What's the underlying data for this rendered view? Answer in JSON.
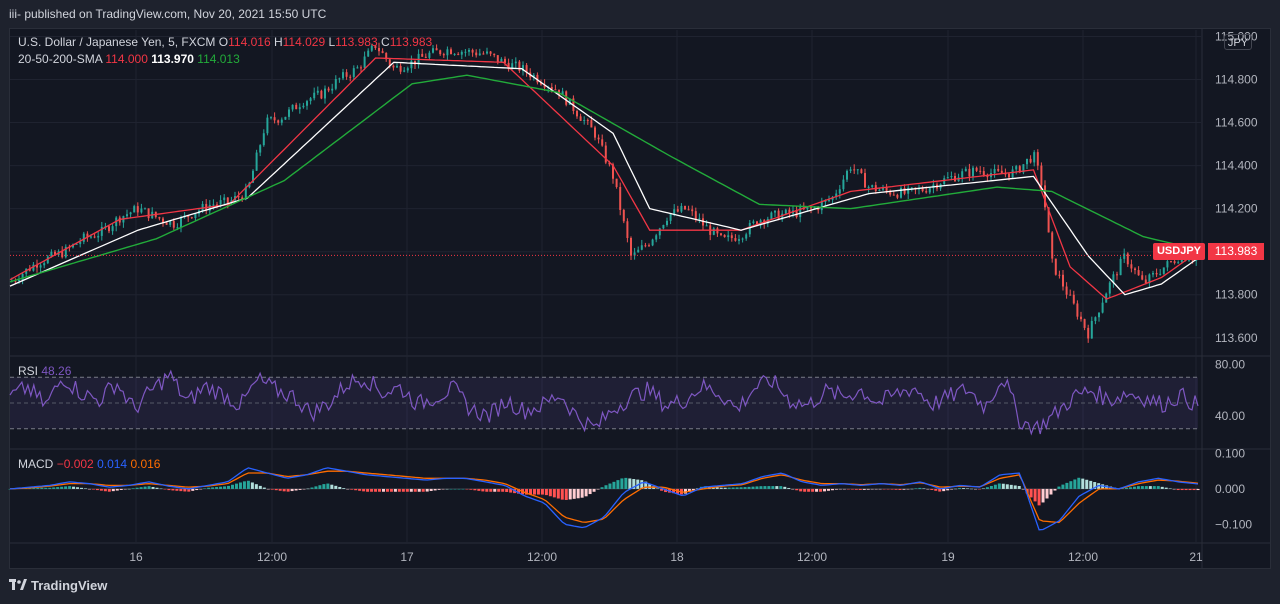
{
  "header": {
    "text": "iii- published on TradingView.com, Nov 20, 2021 15:50 UTC"
  },
  "main_legend": {
    "title": "U.S. Dollar / Japanese Yen, 5, FXCM",
    "o_label": "O",
    "o_value": "114.016",
    "h_label": "H",
    "h_value": "114.029",
    "l_label": "L",
    "l_value": "113.983",
    "c_label": "C",
    "c_value": "113.983"
  },
  "sma_legend": {
    "label": "20-50-200-SMA",
    "v1": "114.000",
    "v2": "113.970",
    "v3": "114.013"
  },
  "currency_button": "JPY",
  "symbol_tag": "USDJPY",
  "last_price": "113.983",
  "rsi_legend": {
    "label": "RSI",
    "value": "48.26"
  },
  "macd_legend": {
    "label": "MACD",
    "v1": "−0.002",
    "v2": "0.014",
    "v3": "0.016"
  },
  "footer": {
    "brand": "TradingView"
  },
  "colors": {
    "up": "#26a69a",
    "down": "#ef5350",
    "sma20": "#f23645",
    "sma50": "#ffffff",
    "sma200": "#22ab3a",
    "rsi": "#7e57c2",
    "macd": "#2962ff",
    "signal": "#ff6d00",
    "background": "#131722"
  },
  "chart_data": [
    {
      "type": "line",
      "name": "price",
      "title": "U.S. Dollar / Japanese Yen, 5, FXCM",
      "x_ticks": [
        "16",
        "12:00",
        "17",
        "12:00",
        "18",
        "12:00",
        "19",
        "12:00",
        "21"
      ],
      "y_ticks": [
        "115.000",
        "114.800",
        "114.600",
        "114.400",
        "114.200",
        "114.000",
        "113.800",
        "113.600"
      ],
      "ylim": [
        113.52,
        115.03
      ],
      "close_path": [
        [
          0,
          113.86
        ],
        [
          1.5,
          113.95
        ],
        [
          3,
          114.0
        ],
        [
          4,
          114.06
        ],
        [
          5,
          114.09
        ],
        [
          6,
          114.16
        ],
        [
          7,
          114.2
        ],
        [
          8,
          114.16
        ],
        [
          9,
          114.13
        ],
        [
          10,
          114.18
        ],
        [
          11,
          114.22
        ],
        [
          12,
          114.23
        ],
        [
          13,
          114.28
        ],
        [
          14,
          114.6
        ],
        [
          15,
          114.63
        ],
        [
          16,
          114.7
        ],
        [
          17,
          114.73
        ],
        [
          18,
          114.8
        ],
        [
          19,
          114.85
        ],
        [
          20,
          114.96
        ],
        [
          21,
          114.85
        ],
        [
          22,
          114.88
        ],
        [
          23,
          114.92
        ],
        [
          24,
          114.94
        ],
        [
          25,
          114.93
        ],
        [
          26,
          114.92
        ],
        [
          27,
          114.88
        ],
        [
          28,
          114.85
        ],
        [
          29,
          114.8
        ],
        [
          30,
          114.75
        ],
        [
          31,
          114.65
        ],
        [
          32,
          114.55
        ],
        [
          33,
          114.35
        ],
        [
          34,
          113.97
        ],
        [
          35,
          114.05
        ],
        [
          36,
          114.17
        ],
        [
          37,
          114.2
        ],
        [
          38,
          114.12
        ],
        [
          39,
          114.05
        ],
        [
          40,
          114.08
        ],
        [
          41,
          114.15
        ],
        [
          42,
          114.17
        ],
        [
          43,
          114.18
        ],
        [
          44,
          114.2
        ],
        [
          45,
          114.25
        ],
        [
          46,
          114.4
        ],
        [
          47,
          114.3
        ],
        [
          48,
          114.28
        ],
        [
          49,
          114.27
        ],
        [
          50,
          114.29
        ],
        [
          51,
          114.33
        ],
        [
          52,
          114.36
        ],
        [
          53,
          114.38
        ],
        [
          54,
          114.36
        ],
        [
          55,
          114.37
        ],
        [
          56,
          114.45
        ],
        [
          56.5,
          114.3
        ],
        [
          57,
          113.95
        ],
        [
          58,
          113.78
        ],
        [
          59,
          113.62
        ],
        [
          60,
          113.82
        ],
        [
          61,
          113.98
        ],
        [
          62,
          113.85
        ],
        [
          63,
          113.92
        ],
        [
          64,
          113.98
        ],
        [
          65,
          113.97
        ]
      ],
      "series": [
        {
          "name": "20-SMA",
          "values": [
            [
              0,
              113.87
            ],
            [
              6,
              114.15
            ],
            [
              12,
              114.22
            ],
            [
              20,
              114.9
            ],
            [
              27,
              114.88
            ],
            [
              33,
              114.4
            ],
            [
              35,
              114.1
            ],
            [
              40,
              114.1
            ],
            [
              46,
              114.28
            ],
            [
              56,
              114.38
            ],
            [
              58,
              113.93
            ],
            [
              60,
              113.78
            ],
            [
              63,
              113.88
            ],
            [
              65,
              114.0
            ]
          ]
        },
        {
          "name": "50-SMA",
          "values": [
            [
              0,
              113.84
            ],
            [
              7,
              114.1
            ],
            [
              13,
              114.25
            ],
            [
              21,
              114.88
            ],
            [
              28,
              114.85
            ],
            [
              33,
              114.55
            ],
            [
              35,
              114.2
            ],
            [
              40,
              114.1
            ],
            [
              47,
              114.27
            ],
            [
              56,
              114.35
            ],
            [
              59,
              113.98
            ],
            [
              61,
              113.8
            ],
            [
              63,
              113.85
            ],
            [
              65,
              113.97
            ]
          ]
        },
        {
          "name": "200-SMA",
          "values": [
            [
              0,
              113.86
            ],
            [
              8,
              114.06
            ],
            [
              15,
              114.33
            ],
            [
              22,
              114.78
            ],
            [
              25,
              114.82
            ],
            [
              30,
              114.74
            ],
            [
              36,
              114.45
            ],
            [
              41,
              114.22
            ],
            [
              46,
              114.2
            ],
            [
              54,
              114.3
            ],
            [
              57,
              114.28
            ],
            [
              62,
              114.07
            ],
            [
              65,
              114.01
            ]
          ]
        }
      ]
    },
    {
      "type": "line",
      "name": "RSI",
      "title": "RSI",
      "y_ticks": [
        "80.00",
        "40.00"
      ],
      "ylim": [
        15,
        85
      ],
      "bands": [
        70,
        30
      ],
      "midline": 50,
      "values": [
        55,
        62,
        48,
        70,
        58,
        52,
        66,
        45,
        60,
        72,
        50,
        63,
        57,
        48,
        68,
        60,
        55,
        42,
        50,
        65,
        70,
        58,
        62,
        49,
        55,
        61,
        45,
        40,
        52,
        44,
        48,
        57,
        39,
        30,
        45,
        55,
        60,
        48,
        52,
        63,
        58,
        45,
        62,
        67,
        52,
        48,
        59,
        55,
        60,
        50,
        57,
        62,
        49,
        55,
        61,
        47,
        71,
        35,
        31,
        42,
        55,
        60,
        52,
        58,
        54,
        49,
        56,
        48
      ]
    },
    {
      "type": "line",
      "name": "MACD",
      "title": "MACD",
      "y_ticks": [
        "0.100",
        "0.000",
        "−0.100"
      ],
      "ylim": [
        -0.15,
        0.11
      ],
      "series": [
        {
          "name": "MACD",
          "values": [
            0,
            0.005,
            0.01,
            0.02,
            0.015,
            0.005,
            0.01,
            0.02,
            0.008,
            0,
            0.01,
            0.02,
            0.06,
            0.045,
            0.03,
            0.04,
            0.06,
            0.05,
            0.04,
            0.035,
            0.03,
            0.025,
            0.03,
            0.03,
            0.02,
            0.01,
            -0.02,
            -0.04,
            -0.1,
            -0.11,
            -0.08,
            -0.01,
            0.02,
            0.0,
            -0.02,
            0.005,
            0.01,
            0.015,
            0.035,
            0.045,
            0.02,
            0.01,
            0.015,
            0.01,
            0.015,
            0.01,
            0.02,
            0.0,
            0.01,
            0.005,
            0.04,
            0.045,
            -0.12,
            -0.09,
            -0.02,
            0.01,
            0.0,
            0.02,
            0.03,
            0.02,
            0.014
          ]
        },
        {
          "name": "Signal",
          "values": [
            0,
            0.003,
            0.008,
            0.015,
            0.015,
            0.01,
            0.01,
            0.015,
            0.01,
            0.005,
            0.008,
            0.015,
            0.045,
            0.045,
            0.035,
            0.04,
            0.05,
            0.05,
            0.045,
            0.04,
            0.035,
            0.03,
            0.03,
            0.03,
            0.025,
            0.015,
            -0.01,
            -0.03,
            -0.08,
            -0.095,
            -0.085,
            -0.03,
            0.005,
            0.005,
            -0.01,
            0.0,
            0.008,
            0.012,
            0.03,
            0.04,
            0.025,
            0.015,
            0.015,
            0.012,
            0.015,
            0.012,
            0.018,
            0.005,
            0.008,
            0.006,
            0.03,
            0.04,
            -0.09,
            -0.095,
            -0.04,
            0.0,
            0.0,
            0.015,
            0.025,
            0.022,
            0.016
          ]
        }
      ]
    }
  ]
}
